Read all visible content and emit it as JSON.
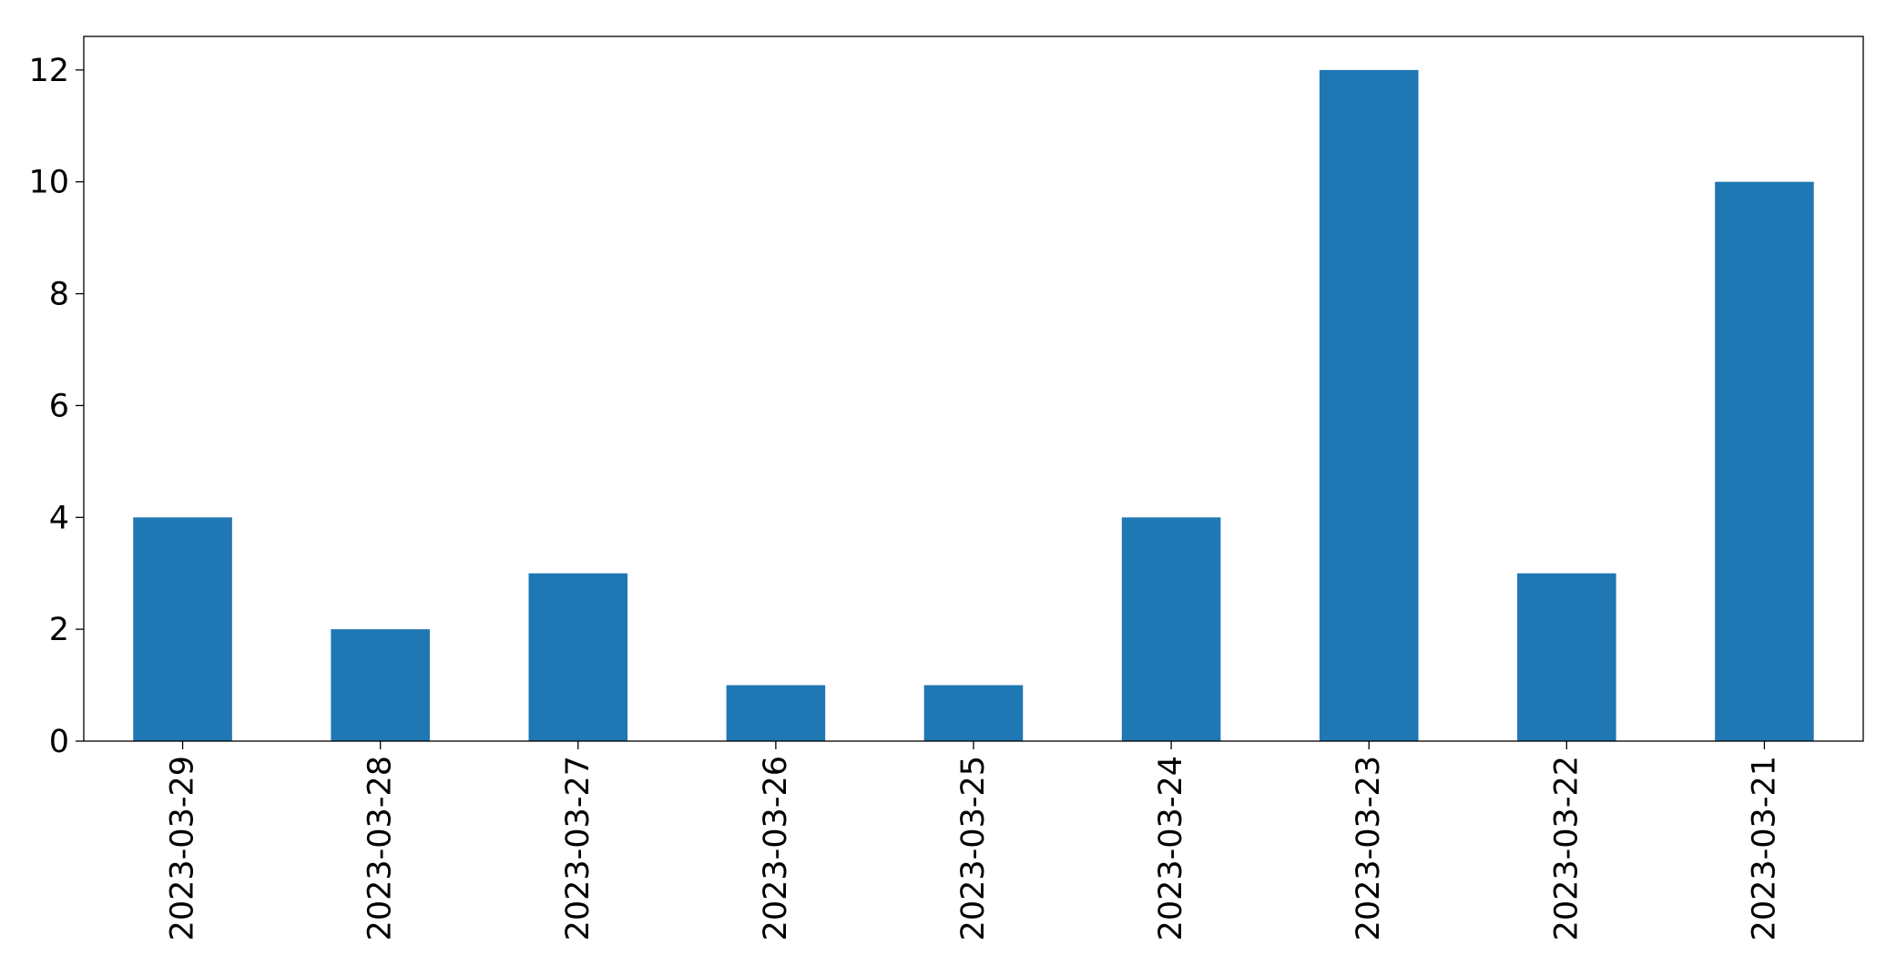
{
  "chart_data": {
    "type": "bar",
    "title": "",
    "xlabel": "",
    "ylabel": "",
    "categories": [
      "2023-03-29",
      "2023-03-28",
      "2023-03-27",
      "2023-03-26",
      "2023-03-25",
      "2023-03-24",
      "2023-03-23",
      "2023-03-22",
      "2023-03-21"
    ],
    "values": [
      4,
      2,
      3,
      1,
      1,
      4,
      12,
      3,
      10
    ],
    "ylim": [
      0,
      12.6
    ],
    "yticks": [
      0,
      2,
      4,
      6,
      8,
      10,
      12
    ],
    "ytick_labels": [
      "0",
      "2",
      "4",
      "6",
      "8",
      "10",
      "12"
    ],
    "xtick_rotation": "vertical",
    "grid": false,
    "legend": "none",
    "bar_color": "#1f77b4",
    "axis_color": "#000000"
  }
}
